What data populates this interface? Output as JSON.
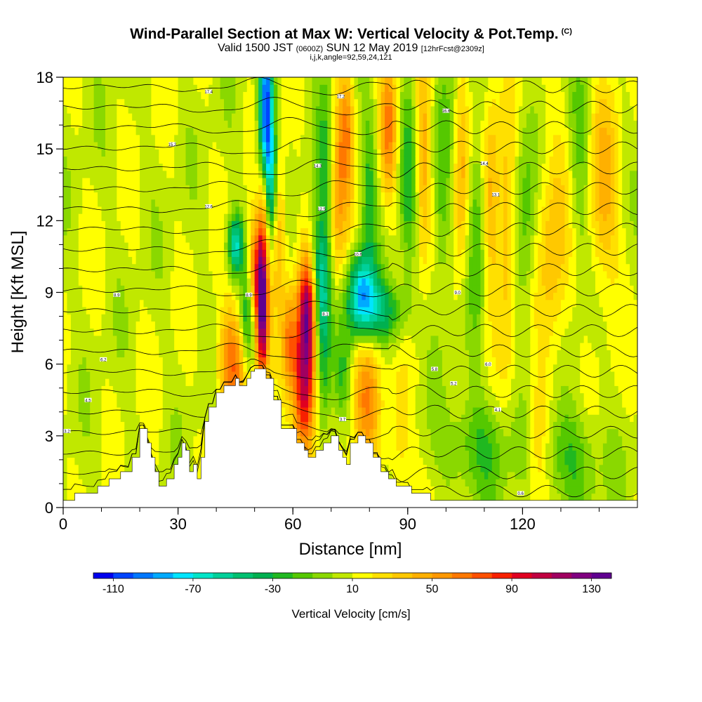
{
  "titles": {
    "main": "Wind-Parallel Section at Max W: Vertical Velocity & Pot.Temp.",
    "main_mark": "(C)",
    "sub_a": "Valid 1500 JST",
    "sub_b": "(0600Z)",
    "sub_c": "SUN 12 May 2019",
    "sub_d": "[12hrFcst@2309z]",
    "params": "i,j,k,angle=92,59,24,121"
  },
  "chart_data": {
    "type": "heatmap",
    "xlabel": "Distance [nm]",
    "ylabel": "Height [Kft MSL]",
    "xlim": [
      0,
      150
    ],
    "ylim": [
      0,
      18
    ],
    "x_ticks": [
      0,
      30,
      60,
      90,
      120
    ],
    "y_ticks": [
      0,
      3,
      6,
      9,
      12,
      15,
      18
    ],
    "fill_variable": "Vertical Velocity [cm/s]",
    "contour_variable": "Pot.Temp.",
    "colorbar": {
      "title": "Vertical Velocity [cm/s]",
      "tick_labels": [
        "-110",
        "-70",
        "-30",
        "10",
        "50",
        "90",
        "130"
      ],
      "tick_values": [
        -110,
        -70,
        -30,
        10,
        50,
        90,
        130
      ],
      "bin_edges_start": -120,
      "bin_width": 10,
      "colors": [
        "#0000ee",
        "#0044ff",
        "#0077ff",
        "#00aaff",
        "#00e5ff",
        "#00e5c8",
        "#00d09a",
        "#00c070",
        "#00b050",
        "#20b820",
        "#55c800",
        "#8ad800",
        "#c0e800",
        "#ffff00",
        "#ffe000",
        "#ffc800",
        "#ffb000",
        "#ff9800",
        "#ff7800",
        "#ff5000",
        "#f82000",
        "#e00020",
        "#c00040",
        "#a00060",
        "#800080",
        "#600090"
      ]
    },
    "terrain_kft": [
      [
        0,
        0.3
      ],
      [
        3,
        0.3
      ],
      [
        3,
        0.6
      ],
      [
        9,
        0.6
      ],
      [
        9,
        0.9
      ],
      [
        12,
        0.9
      ],
      [
        12,
        1.2
      ],
      [
        15,
        1.2
      ],
      [
        15,
        1.5
      ],
      [
        18,
        1.5
      ],
      [
        18,
        2.1
      ],
      [
        20,
        2.1
      ],
      [
        20,
        3.3
      ],
      [
        22,
        3.3
      ],
      [
        22,
        2.7
      ],
      [
        23,
        2.7
      ],
      [
        23,
        2.1
      ],
      [
        24,
        2.1
      ],
      [
        24,
        1.5
      ],
      [
        25,
        1.5
      ],
      [
        25,
        0.9
      ],
      [
        27,
        0.9
      ],
      [
        27,
        1.2
      ],
      [
        29,
        1.2
      ],
      [
        29,
        1.8
      ],
      [
        30,
        1.8
      ],
      [
        30,
        2.1
      ],
      [
        31,
        2.1
      ],
      [
        31,
        2.7
      ],
      [
        32,
        2.7
      ],
      [
        32,
        2.4
      ],
      [
        33,
        2.4
      ],
      [
        33,
        1.5
      ],
      [
        34,
        1.5
      ],
      [
        34,
        1.8
      ],
      [
        35,
        1.8
      ],
      [
        35,
        1.2
      ],
      [
        36,
        1.2
      ],
      [
        36,
        2.1
      ],
      [
        37,
        2.1
      ],
      [
        37,
        3.6
      ],
      [
        38,
        3.6
      ],
      [
        38,
        4.2
      ],
      [
        40,
        4.2
      ],
      [
        40,
        4.8
      ],
      [
        42,
        4.8
      ],
      [
        42,
        5.1
      ],
      [
        45,
        5.1
      ],
      [
        45,
        5.4
      ],
      [
        46,
        5.4
      ],
      [
        46,
        5.1
      ],
      [
        48,
        5.1
      ],
      [
        48,
        5.4
      ],
      [
        49,
        5.4
      ],
      [
        49,
        5.7
      ],
      [
        50,
        5.7
      ],
      [
        50,
        5.8
      ],
      [
        53,
        5.8
      ],
      [
        53,
        5.4
      ],
      [
        55,
        5.4
      ],
      [
        55,
        4.5
      ],
      [
        57,
        4.5
      ],
      [
        57,
        3.3
      ],
      [
        61,
        3.3
      ],
      [
        61,
        2.7
      ],
      [
        63,
        2.7
      ],
      [
        63,
        2.4
      ],
      [
        64,
        2.4
      ],
      [
        64,
        2.1
      ],
      [
        66,
        2.1
      ],
      [
        66,
        2.4
      ],
      [
        68,
        2.4
      ],
      [
        68,
        2.7
      ],
      [
        70,
        2.7
      ],
      [
        70,
        3.0
      ],
      [
        72,
        3.0
      ],
      [
        72,
        2.4
      ],
      [
        73,
        2.4
      ],
      [
        73,
        2.1
      ],
      [
        74,
        2.1
      ],
      [
        74,
        1.8
      ],
      [
        75,
        1.8
      ],
      [
        75,
        2.7
      ],
      [
        77,
        2.7
      ],
      [
        77,
        3.0
      ],
      [
        79,
        3.0
      ],
      [
        79,
        2.7
      ],
      [
        81,
        2.7
      ],
      [
        81,
        2.1
      ],
      [
        83,
        2.1
      ],
      [
        83,
        1.5
      ],
      [
        85,
        1.5
      ],
      [
        85,
        1.2
      ],
      [
        87,
        1.2
      ],
      [
        87,
        0.9
      ],
      [
        91,
        0.9
      ],
      [
        91,
        0.6
      ],
      [
        96,
        0.6
      ],
      [
        96,
        0.3
      ],
      [
        150,
        0.3
      ]
    ],
    "w_features": [
      {
        "x": 52,
        "y": 8.5,
        "sx": 1.1,
        "sy": 2.2,
        "w": 135
      },
      {
        "x": 52.5,
        "y": 13,
        "sx": 0.9,
        "sy": 1.5,
        "w": 40
      },
      {
        "x": 53,
        "y": 16.5,
        "sx": 1.3,
        "sy": 2.5,
        "w": -115
      },
      {
        "x": 54.5,
        "y": 13.5,
        "sx": 1.2,
        "sy": 2,
        "w": -60
      },
      {
        "x": 50,
        "y": 10,
        "sx": 1.5,
        "sy": 1.5,
        "w": 55
      },
      {
        "x": 45,
        "y": 11,
        "sx": 1.5,
        "sy": 0.9,
        "w": -70
      },
      {
        "x": 44,
        "y": 6,
        "sx": 2.5,
        "sy": 1.6,
        "w": 60
      },
      {
        "x": 48,
        "y": 8,
        "sx": 1.2,
        "sy": 1.5,
        "w": -40
      },
      {
        "x": 56,
        "y": 12,
        "sx": 1.5,
        "sy": 2.5,
        "w": 45
      },
      {
        "x": 63,
        "y": 5.5,
        "sx": 2,
        "sy": 2.5,
        "w": 110
      },
      {
        "x": 64,
        "y": 8.5,
        "sx": 1.5,
        "sy": 1.5,
        "w": 70
      },
      {
        "x": 59,
        "y": 7,
        "sx": 1.2,
        "sy": 1.5,
        "w": 45
      },
      {
        "x": 67,
        "y": 9.5,
        "sx": 2,
        "sy": 1.8,
        "w": -55
      },
      {
        "x": 69,
        "y": 14,
        "sx": 1.8,
        "sy": 3,
        "w": -45
      },
      {
        "x": 68,
        "y": 6.5,
        "sx": 1.5,
        "sy": 2.5,
        "w": -35
      },
      {
        "x": 71,
        "y": 13,
        "sx": 2,
        "sy": 3,
        "w": 50
      },
      {
        "x": 74,
        "y": 16,
        "sx": 1.5,
        "sy": 2,
        "w": 45
      },
      {
        "x": 78,
        "y": 9,
        "sx": 2.5,
        "sy": 1.2,
        "w": -80
      },
      {
        "x": 83,
        "y": 8.2,
        "sx": 5,
        "sy": 0.9,
        "w": -45
      },
      {
        "x": 80,
        "y": 13.5,
        "sx": 1.5,
        "sy": 2.5,
        "w": -30
      },
      {
        "x": 79,
        "y": 4.5,
        "sx": 2.5,
        "sy": 2,
        "w": 45
      },
      {
        "x": 73,
        "y": 5.5,
        "sx": 1.5,
        "sy": 1.5,
        "w": -25
      },
      {
        "x": 85,
        "y": 16,
        "sx": 1.5,
        "sy": 2,
        "w": 50
      },
      {
        "x": 90,
        "y": 14,
        "sx": 1.5,
        "sy": 3,
        "w": -30
      },
      {
        "x": 94,
        "y": 14.5,
        "sx": 1.3,
        "sy": 3,
        "w": 40
      },
      {
        "x": 99,
        "y": 13,
        "sx": 1.5,
        "sy": 3,
        "w": -30
      },
      {
        "x": 104,
        "y": 14,
        "sx": 1.3,
        "sy": 3,
        "w": 35
      },
      {
        "x": 108,
        "y": 12,
        "sx": 1.5,
        "sy": 3,
        "w": -30
      },
      {
        "x": 112,
        "y": 13,
        "sx": 1.5,
        "sy": 3,
        "w": 35
      },
      {
        "x": 116,
        "y": 11.5,
        "sx": 1.5,
        "sy": 3.5,
        "w": 35
      },
      {
        "x": 121,
        "y": 12,
        "sx": 2,
        "sy": 3,
        "w": -25
      },
      {
        "x": 128,
        "y": 11,
        "sx": 3,
        "sy": 3.5,
        "w": 30
      },
      {
        "x": 141,
        "y": 13,
        "sx": 3,
        "sy": 3,
        "w": 35
      },
      {
        "x": 135,
        "y": 14,
        "sx": 2,
        "sy": 3,
        "w": -25
      },
      {
        "x": 108,
        "y": 2.5,
        "sx": 6,
        "sy": 1.5,
        "w": -30
      },
      {
        "x": 132,
        "y": 2,
        "sx": 6,
        "sy": 1.5,
        "w": -30
      },
      {
        "x": 124,
        "y": 2.5,
        "sx": 2,
        "sy": 2,
        "w": 30
      },
      {
        "x": 88,
        "y": 3,
        "sx": 2,
        "sy": 2,
        "w": 25
      }
    ],
    "theta_contour_labels": [
      {
        "x": 1,
        "y": 3.2,
        "text": "3.2"
      },
      {
        "x": 6.5,
        "y": 4.5,
        "text": "4.5"
      },
      {
        "x": 10.5,
        "y": 6.2,
        "text": "6.2"
      },
      {
        "x": 14,
        "y": 8.9,
        "text": "8.9"
      },
      {
        "x": 48.5,
        "y": 8.9,
        "text": "8.9"
      },
      {
        "x": 28.5,
        "y": 15.2,
        "text": "15.2"
      },
      {
        "x": 38,
        "y": 17.4,
        "text": "17.4"
      },
      {
        "x": 38,
        "y": 12.6,
        "text": "12.6"
      },
      {
        "x": 66.5,
        "y": 14.3,
        "text": "14.3"
      },
      {
        "x": 67.5,
        "y": 12.5,
        "text": "12.5"
      },
      {
        "x": 72.5,
        "y": 17.2,
        "text": "17.2"
      },
      {
        "x": 77,
        "y": 10.6,
        "text": "10.6"
      },
      {
        "x": 68.5,
        "y": 8.1,
        "text": "8.1"
      },
      {
        "x": 73,
        "y": 3.7,
        "text": "3.7"
      },
      {
        "x": 100,
        "y": 16.6,
        "text": "16.6"
      },
      {
        "x": 110,
        "y": 14.4,
        "text": "14.4"
      },
      {
        "x": 113,
        "y": 13.1,
        "text": "13.1"
      },
      {
        "x": 103,
        "y": 9.0,
        "text": "9.0"
      },
      {
        "x": 97,
        "y": 5.8,
        "text": "5.8"
      },
      {
        "x": 102,
        "y": 5.2,
        "text": "5.2"
      },
      {
        "x": 111,
        "y": 6.0,
        "text": "6.0"
      },
      {
        "x": 113.5,
        "y": 4.1,
        "text": "4.1"
      },
      {
        "x": 119.5,
        "y": 0.6,
        "text": "0.6"
      }
    ]
  }
}
